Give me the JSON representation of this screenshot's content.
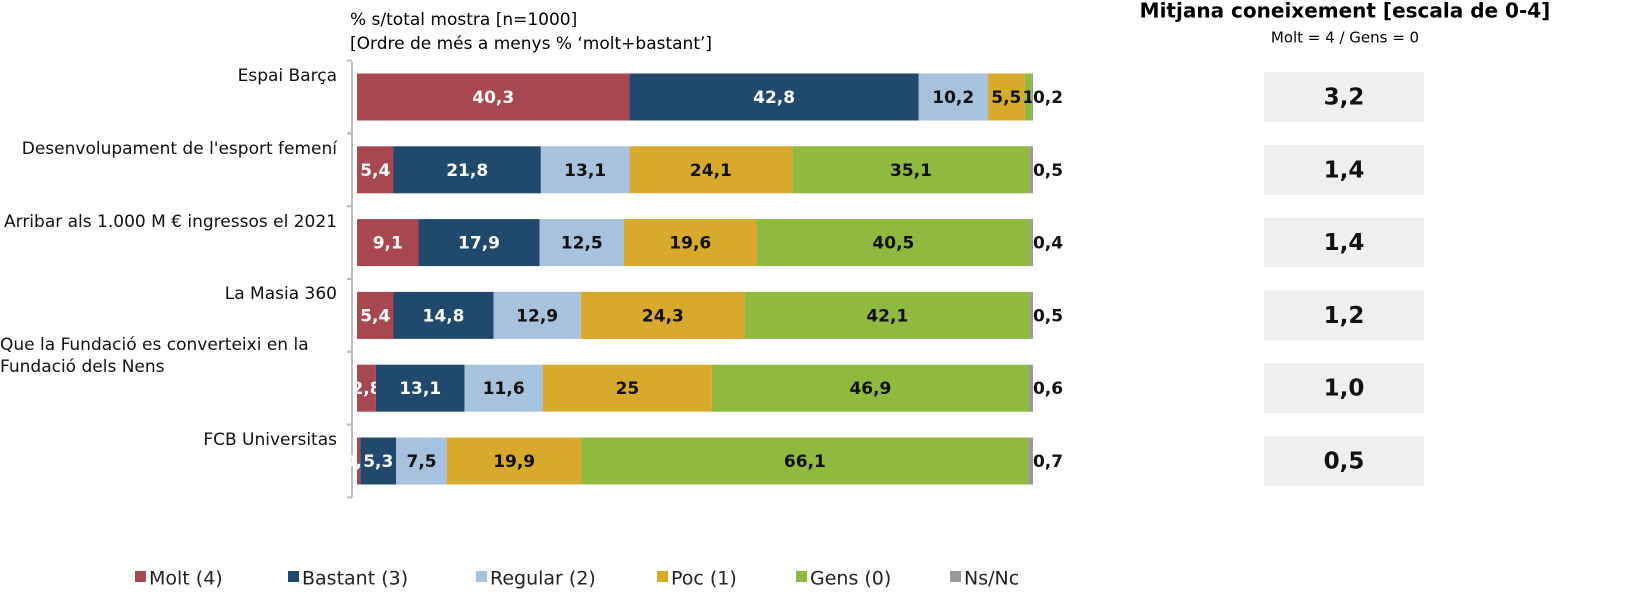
{
  "chart_data": {
    "type": "stacked-bar-horizontal",
    "subtitle": [
      "% s/total mostra [n=1000]",
      "[Ordre de més a menys % ‘molt+bastant’]"
    ],
    "categories": [
      "Espai Barça",
      "Desenvolupament de l'esport femení",
      "Arribar als 1.000 M € ingressos el 2021",
      "La Masia 360",
      "Que la Fundació es converteixi en la Fundació dels Nens",
      "FCB Universitas"
    ],
    "xlim": [
      0,
      100
    ],
    "series": [
      {
        "name": "Molt (4)",
        "color": "#a94750",
        "values": [
          40.3,
          5.4,
          9.1,
          5.4,
          2.8,
          0.5
        ],
        "value_labels": [
          "40,3",
          "5,4",
          "9,1",
          "5,4",
          "2,8",
          "0,5"
        ]
      },
      {
        "name": "Bastant (3)",
        "color": "#1f4a6e",
        "values": [
          42.8,
          21.8,
          17.9,
          14.8,
          13.1,
          5.3
        ],
        "value_labels": [
          "42,8",
          "21,8",
          "17,9",
          "14,8",
          "13,1",
          "5,3"
        ]
      },
      {
        "name": "Regular (2)",
        "color": "#a6c2df",
        "values": [
          10.2,
          13.1,
          12.5,
          12.9,
          11.6,
          7.5
        ],
        "value_labels": [
          "10,2",
          "13,1",
          "12,5",
          "12,9",
          "11,6",
          "7,5"
        ]
      },
      {
        "name": "Poc (1)",
        "color": "#d8aa2c",
        "values": [
          5.5,
          24.1,
          19.6,
          24.3,
          25,
          19.9
        ],
        "value_labels": [
          "5,5",
          "24,1",
          "19,6",
          "24,3",
          "25",
          "19,9"
        ]
      },
      {
        "name": "Gens (0)",
        "color": "#8fba3f",
        "values": [
          1,
          35.1,
          40.5,
          42.1,
          46.9,
          66.1
        ],
        "value_labels": [
          "1",
          "35,1",
          "40,5",
          "42,1",
          "46,9",
          "66,1"
        ]
      },
      {
        "name": "Ns/Nc",
        "color": "#999999",
        "values": [
          0.2,
          0.5,
          0.4,
          0.5,
          0.6,
          0.7
        ],
        "value_labels": [
          "0,2",
          "0,5",
          "0,4",
          "0,5",
          "0,6",
          "0,7"
        ]
      }
    ],
    "side_panel": {
      "title": "Mitjana coneixement [escala de 0-4]",
      "subtitle": "Molt = 4 / Gens = 0",
      "values": [
        3.2,
        1.4,
        1.4,
        1.2,
        1.0,
        0.5
      ],
      "value_labels": [
        "3,2",
        "1,4",
        "1,4",
        "1,2",
        "1,0",
        "0,5"
      ]
    }
  }
}
